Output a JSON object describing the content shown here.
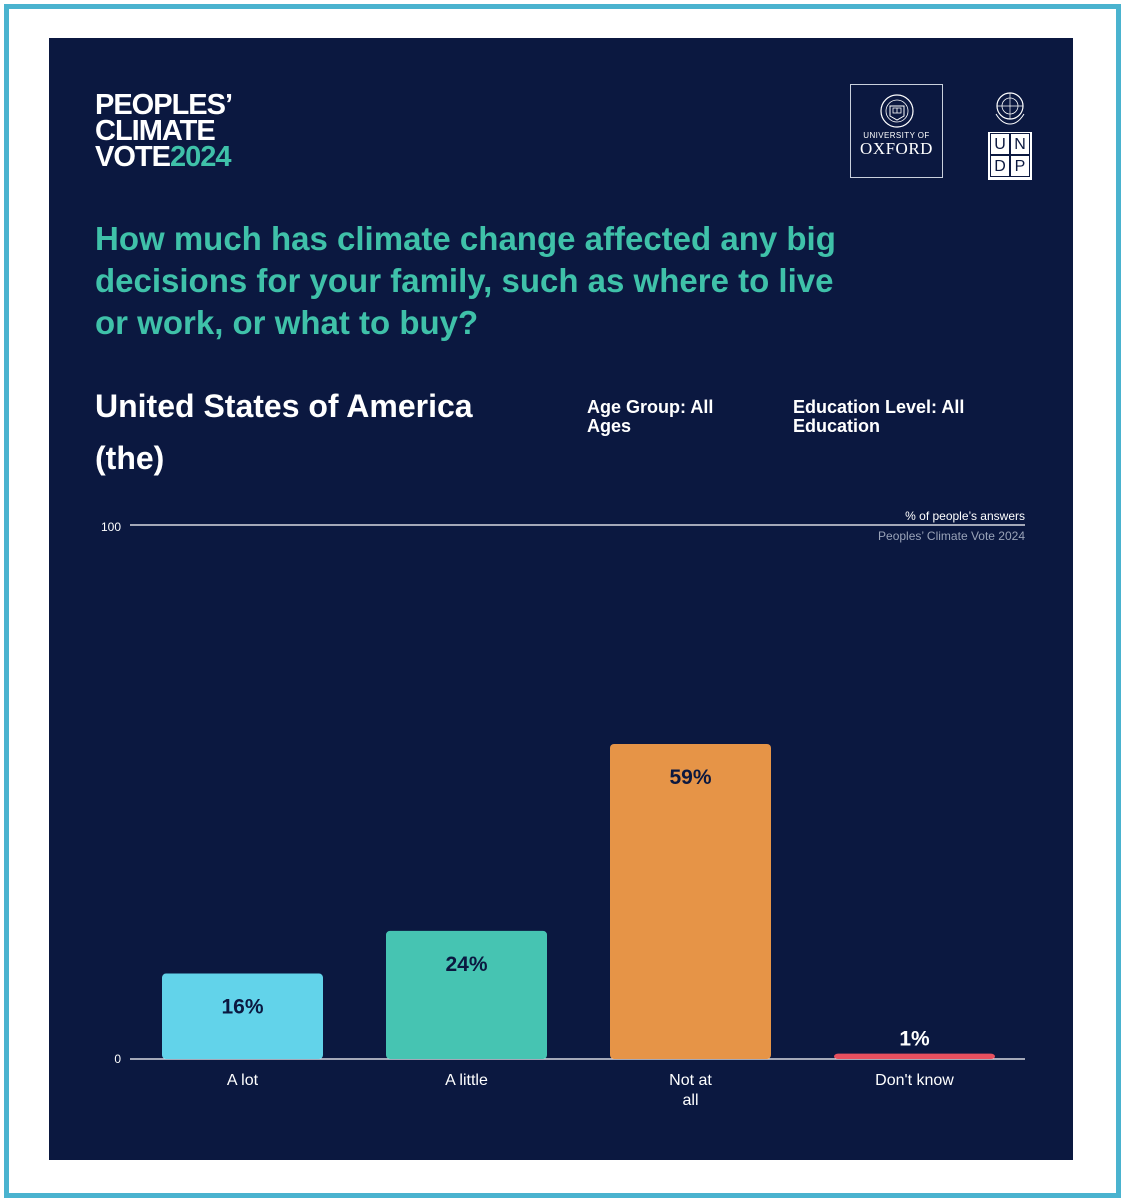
{
  "logo": {
    "line1": "PEOPLES’",
    "line2": "CLIMATE",
    "line3a": "VOTE",
    "line3b": "2024"
  },
  "partners": {
    "oxford_small": "UNIVERSITY OF",
    "oxford_big": "OXFORD",
    "undp": [
      "U",
      "N",
      "D",
      "P"
    ]
  },
  "question": "How much has climate change affected any big decisions for your family, such as where to live or work, or what to buy?",
  "country": "United States of America (the)",
  "filters": {
    "age": "Age Group: All Ages",
    "education": "Education Level: All Education"
  },
  "chart_data": {
    "type": "bar",
    "unit_label": "% of people’s answers",
    "source": "Peoples’ Climate Vote 2024",
    "ylim": [
      0,
      100
    ],
    "y_ticks": [
      "0",
      "100"
    ],
    "categories": [
      {
        "label": "A lot",
        "value": 16,
        "value_label": "16%",
        "color": "#62d3ea"
      },
      {
        "label": "A little",
        "value": 24,
        "value_label": "24%",
        "color": "#46c4b2"
      },
      {
        "label": "Not at all",
        "value": 59,
        "value_label": "59%",
        "color": "#e69447"
      },
      {
        "label": "Don't know",
        "value": 1,
        "value_label": "1%",
        "color": "#e8505f"
      }
    ]
  },
  "colors": {
    "background": "#0b1840",
    "frame": "#4ab3cf",
    "accent": "#3fc1a9"
  }
}
